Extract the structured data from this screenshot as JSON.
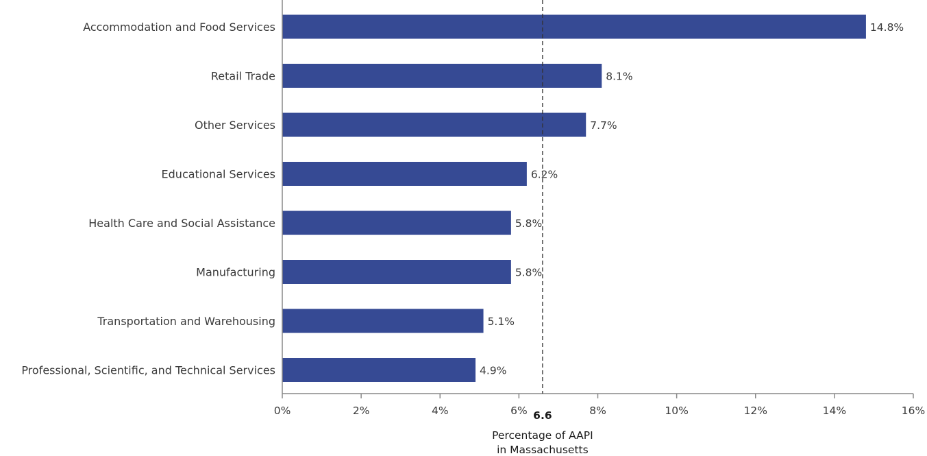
{
  "chart_data": {
    "type": "bar",
    "orientation": "horizontal",
    "categories": [
      "Accommodation and Food Services",
      "Retail Trade",
      "Other Services",
      "Educational Services",
      "Health Care and Social Assistance",
      "Manufacturing",
      "Transportation and Warehousing",
      "Professional, Scientific, and Technical Services"
    ],
    "values": [
      14.8,
      8.1,
      7.7,
      6.2,
      5.8,
      5.8,
      5.1,
      4.9
    ],
    "value_labels": [
      "14.8%",
      "8.1%",
      "7.7%",
      "6.2%",
      "5.8%",
      "5.8%",
      "5.1%",
      "4.9%"
    ],
    "xlim": [
      0,
      16
    ],
    "xticks": [
      0,
      2,
      4,
      6,
      8,
      10,
      12,
      14,
      16
    ],
    "xtick_labels": [
      "0%",
      "2%",
      "4%",
      "6%",
      "8%",
      "10%",
      "12%",
      "14%",
      "16%"
    ],
    "bar_color": "#364a94",
    "grid": false,
    "reference_line": {
      "value": 6.6,
      "value_label": "6.6",
      "label_line1": "Percentage of AAPI",
      "label_line2": "in Massachusetts",
      "style": "dashed"
    }
  }
}
